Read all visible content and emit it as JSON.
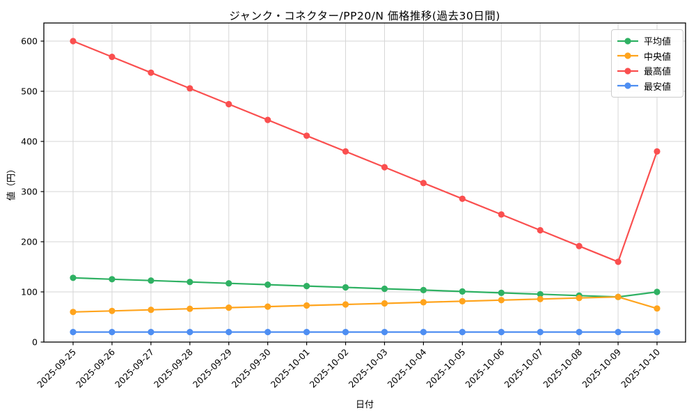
{
  "chart_data": {
    "type": "line",
    "title": "ジャンク・コネクター/PP20/N 価格推移(過去30日間)",
    "xlabel": "日付",
    "ylabel": "値（円）",
    "grid": true,
    "legend_position": "upper right",
    "ylim": [
      0,
      636
    ],
    "yticks": [
      0,
      100,
      200,
      300,
      400,
      500,
      600
    ],
    "x_tick_rotation_deg": 45,
    "background_color": "#ffffff",
    "grid_color": "#d6d6d6",
    "frame_color": "#000000",
    "categories": [
      "2025-09-25",
      "2025-09-26",
      "2025-09-27",
      "2025-09-28",
      "2025-09-29",
      "2025-09-30",
      "2025-10-01",
      "2025-10-02",
      "2025-10-03",
      "2025-10-04",
      "2025-10-05",
      "2025-10-06",
      "2025-10-07",
      "2025-10-08",
      "2025-10-09",
      "2025-10-10"
    ],
    "series": [
      {
        "key": "average",
        "name": "平均値",
        "color": "#2fb163",
        "values": [
          128,
          125.3,
          122.6,
          119.9,
          117.1,
          114.4,
          111.7,
          109,
          106.3,
          103.6,
          100.9,
          98.1,
          95.4,
          92.7,
          90,
          100
        ]
      },
      {
        "key": "median",
        "name": "中央値",
        "color": "#ffa41d",
        "values": [
          60,
          62.1,
          64.3,
          66.4,
          68.6,
          70.7,
          72.9,
          75,
          77.1,
          79.3,
          81.4,
          83.6,
          85.7,
          87.9,
          90,
          67
        ]
      },
      {
        "key": "max",
        "name": "最高値",
        "color": "#fa4f4f",
        "values": [
          600,
          568.6,
          537.1,
          505.7,
          474.3,
          442.9,
          411.4,
          380,
          348.6,
          317.1,
          285.7,
          254.3,
          222.9,
          191.4,
          160,
          380
        ]
      },
      {
        "key": "min",
        "name": "最安値",
        "color": "#4e8ef2",
        "values": [
          20,
          20,
          20,
          20,
          20,
          20,
          20,
          20,
          20,
          20,
          20,
          20,
          20,
          20,
          20,
          20
        ]
      }
    ]
  }
}
